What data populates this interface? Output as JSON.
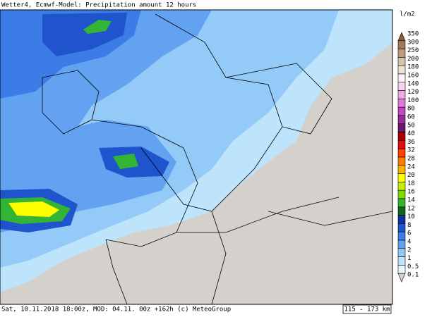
{
  "header": {
    "title": "Wetter4, Ecmwf-Model: Precipitation amount 12 hours"
  },
  "legend": {
    "unit": "l/m2",
    "labels": [
      "350",
      "300",
      "250",
      "200",
      "180",
      "160",
      "140",
      "120",
      "100",
      "80",
      "60",
      "50",
      "40",
      "36",
      "32",
      "28",
      "24",
      "20",
      "18",
      "16",
      "14",
      "12",
      "10",
      "8",
      "6",
      "4",
      "2",
      "1",
      "0.5",
      "0.1"
    ],
    "colors": [
      "#8a5a30",
      "#a27a58",
      "#bc9c7c",
      "#d8c6ac",
      "#efe4d4",
      "#fcf4fa",
      "#f6d2ee",
      "#eeaae4",
      "#e07ad6",
      "#c448c0",
      "#9c2c9c",
      "#6c1870",
      "#a80000",
      "#e01010",
      "#ff4000",
      "#ff7c00",
      "#ffb400",
      "#ffff00",
      "#c8f000",
      "#80dc00",
      "#34b434",
      "#10641c",
      "#14309c",
      "#2054cc",
      "#3c7ce6",
      "#62a2f0",
      "#94caf8",
      "#bee4fc",
      "#e8f6fe",
      "#d6d2ce"
    ]
  },
  "footer": {
    "info": "Sat, 10.11.2018 18:00z, MOD: 04.11. 00z +162h (c) MeteoGroup",
    "scale": "115 - 173 km"
  }
}
